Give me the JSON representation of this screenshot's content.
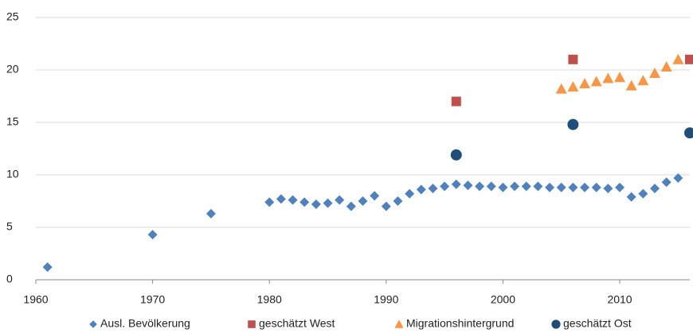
{
  "chart_data": {
    "type": "scatter",
    "xlim": [
      1960,
      2016
    ],
    "xticks": [
      1960,
      1970,
      1980,
      1990,
      2000,
      2010
    ],
    "ylim": [
      0,
      25
    ],
    "yticks": [
      0,
      5,
      10,
      15,
      20,
      25
    ],
    "grid": true,
    "legend": "bottom",
    "series": [
      {
        "name": "Ausl. Bevölkerung",
        "color": "#4f81bd",
        "marker": "diamond",
        "x": [
          1961,
          1970,
          1975,
          1980,
          1981,
          1982,
          1983,
          1984,
          1985,
          1986,
          1987,
          1988,
          1989,
          1990,
          1991,
          1992,
          1993,
          1994,
          1995,
          1996,
          1997,
          1998,
          1999,
          2000,
          2001,
          2002,
          2003,
          2004,
          2005,
          2006,
          2007,
          2008,
          2009,
          2010,
          2011,
          2012,
          2013,
          2014,
          2015
        ],
        "values": [
          1.2,
          4.3,
          6.3,
          7.4,
          7.7,
          7.6,
          7.4,
          7.2,
          7.3,
          7.6,
          7.0,
          7.5,
          8.0,
          7.0,
          7.5,
          8.2,
          8.6,
          8.7,
          8.9,
          9.1,
          9.0,
          8.9,
          8.9,
          8.8,
          8.9,
          8.9,
          8.9,
          8.8,
          8.8,
          8.8,
          8.8,
          8.8,
          8.7,
          8.8,
          7.9,
          8.2,
          8.7,
          9.3,
          9.7
        ]
      },
      {
        "name": "geschätzt West",
        "color": "#c0504d",
        "marker": "square",
        "x": [
          1996,
          2006,
          2016
        ],
        "values": [
          17,
          21,
          21
        ]
      },
      {
        "name": "Migrationshintergrund",
        "color": "#f79646",
        "marker": "triangle",
        "x": [
          2005,
          2006,
          2007,
          2008,
          2009,
          2010,
          2011,
          2012,
          2013,
          2014,
          2015
        ],
        "values": [
          18.2,
          18.4,
          18.7,
          18.9,
          19.2,
          19.3,
          18.5,
          19.0,
          19.7,
          20.3,
          21.0
        ]
      },
      {
        "name": "geschätzt Ost",
        "color": "#1f4e79",
        "marker": "circle",
        "x": [
          1996,
          2006,
          2016
        ],
        "values": [
          11.9,
          14.8,
          14.0
        ]
      }
    ]
  }
}
